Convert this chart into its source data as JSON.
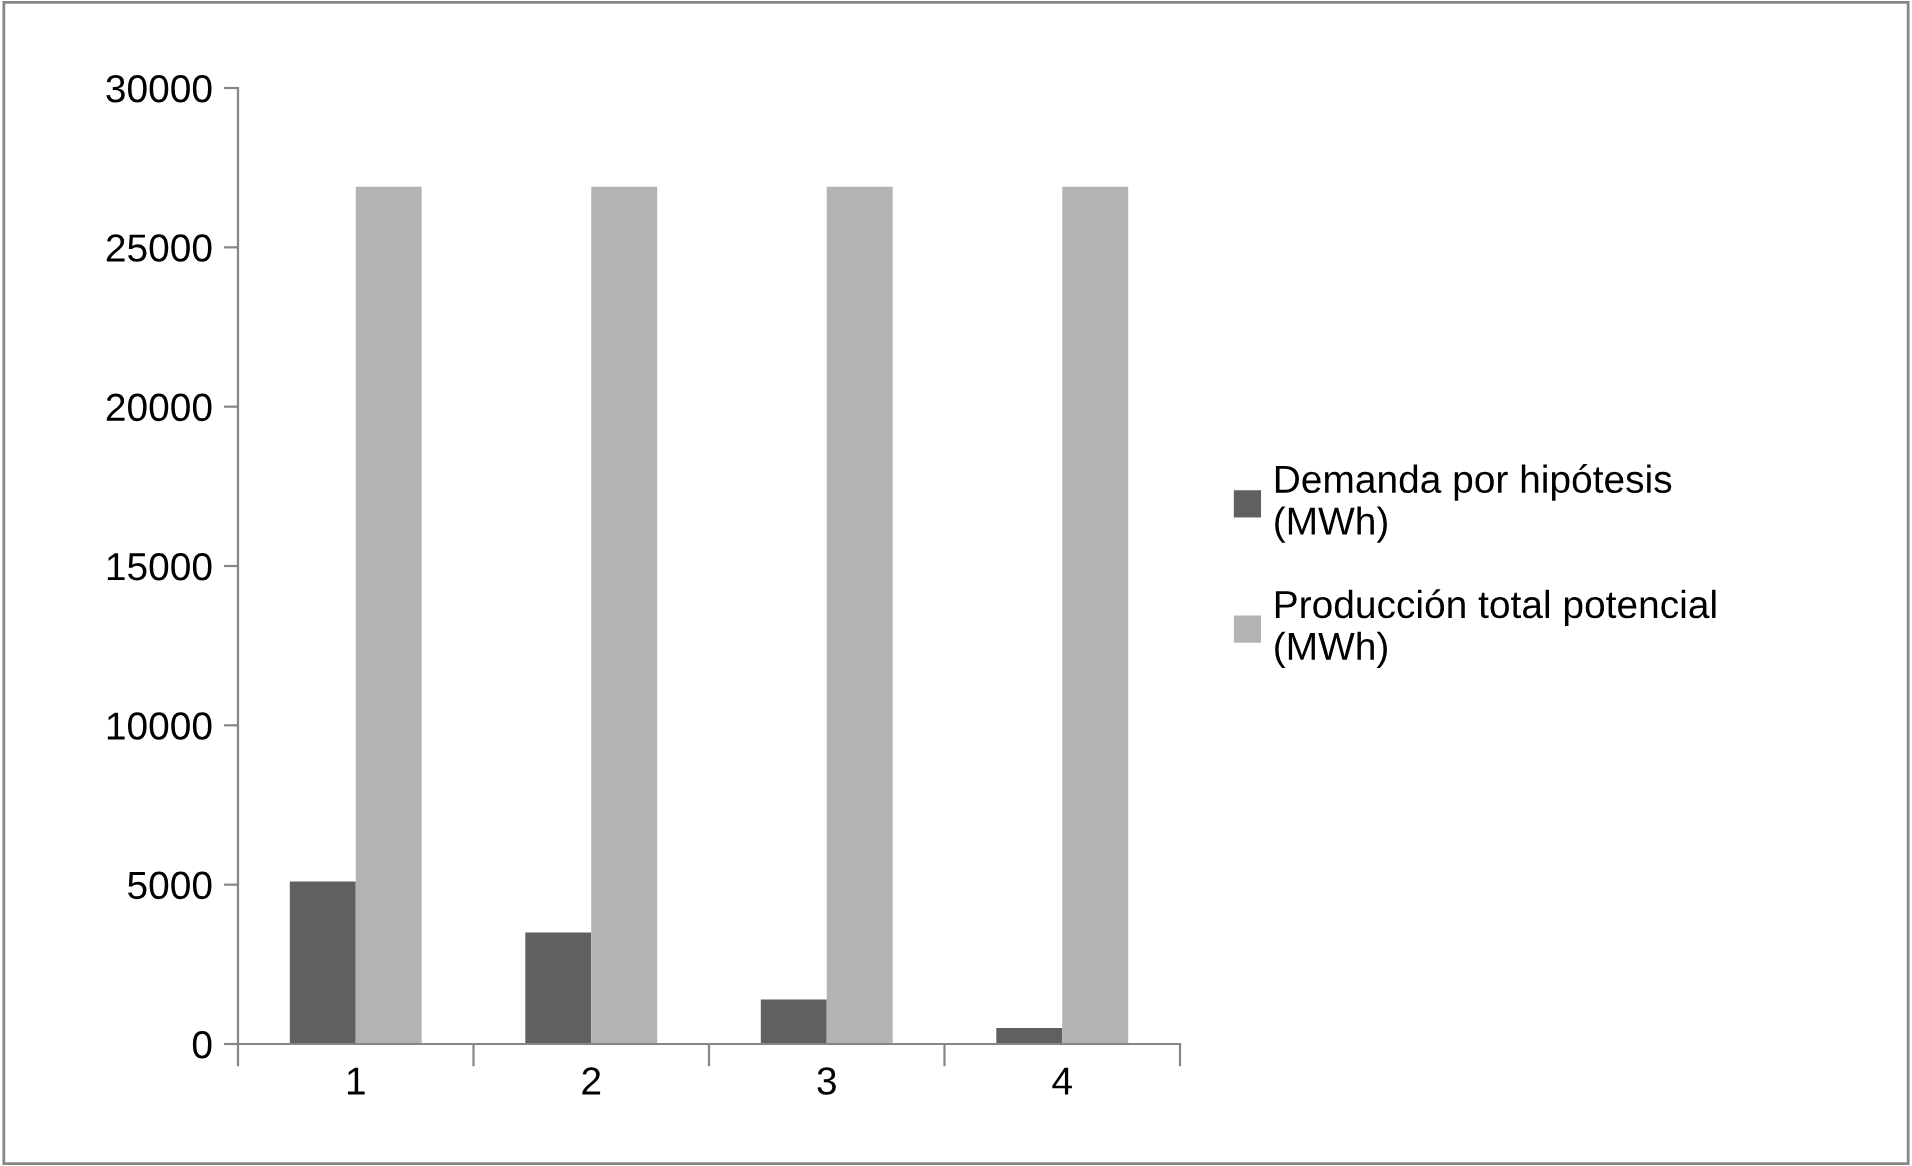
{
  "chart_data": {
    "type": "bar",
    "categories": [
      "1",
      "2",
      "3",
      "4"
    ],
    "series": [
      {
        "name": "Demanda por hipótesis (MWh)",
        "color": "#606060",
        "values": [
          5100,
          3500,
          1400,
          500
        ]
      },
      {
        "name": "Producción total potencial (MWh)",
        "color": "#b3b3b3",
        "values": [
          26900,
          26900,
          26900,
          26900
        ]
      }
    ],
    "ylim": [
      0,
      30000
    ],
    "yticks": [
      0,
      5000,
      10000,
      15000,
      20000,
      25000,
      30000
    ],
    "grid": false,
    "legend": "right"
  }
}
